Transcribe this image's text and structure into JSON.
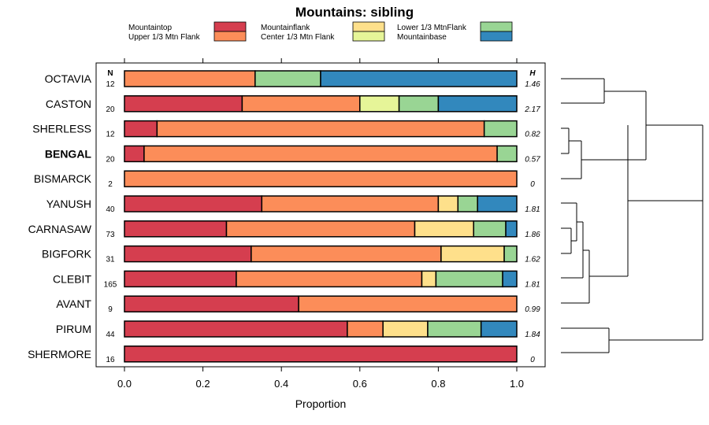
{
  "chart_data": {
    "type": "bar",
    "orientation": "horizontal",
    "stacked": true,
    "title": "Mountains: sibling",
    "xlabel": "Proportion",
    "xlim": [
      0,
      1
    ],
    "xticks": [
      0.0,
      0.2,
      0.4,
      0.6,
      0.8,
      1.0
    ],
    "xtick_labels": [
      "0.0",
      "0.2",
      "0.4",
      "0.6",
      "0.8",
      "1.0"
    ],
    "n_header": "N",
    "h_header": "H",
    "legend_position": "top",
    "series": [
      {
        "name": "Mountaintop",
        "color": "#d53e4f"
      },
      {
        "name": "Upper 1/3 Mtn Flank",
        "color": "#fc8d59"
      },
      {
        "name": "Mountainflank",
        "color": "#fee08b"
      },
      {
        "name": "Center 1/3 Mtn Flank",
        "color": "#e6f598"
      },
      {
        "name": "Lower 1/3 MtnFlank",
        "color": "#99d594"
      },
      {
        "name": "Mountainbase",
        "color": "#3288bd"
      }
    ],
    "rows": [
      {
        "label": "OCTAVIA",
        "n": "12",
        "h": "1.46",
        "bold": false,
        "values": [
          0,
          0.333,
          0,
          0,
          0.167,
          0.5
        ]
      },
      {
        "label": "CASTON",
        "n": "20",
        "h": "2.17",
        "bold": false,
        "values": [
          0.3,
          0.3,
          0,
          0.1,
          0.1,
          0.2
        ]
      },
      {
        "label": "SHERLESS",
        "n": "12",
        "h": "0.82",
        "bold": false,
        "values": [
          0.083,
          0.834,
          0,
          0,
          0.083,
          0
        ]
      },
      {
        "label": "BENGAL",
        "n": "20",
        "h": "0.57",
        "bold": true,
        "values": [
          0.05,
          0.9,
          0,
          0,
          0.05,
          0
        ]
      },
      {
        "label": "BISMARCK",
        "n": "2",
        "h": "0",
        "bold": false,
        "values": [
          0,
          1.0,
          0,
          0,
          0,
          0
        ]
      },
      {
        "label": "YANUSH",
        "n": "40",
        "h": "1.81",
        "bold": false,
        "values": [
          0.35,
          0.45,
          0.05,
          0,
          0.05,
          0.1
        ]
      },
      {
        "label": "CARNASAW",
        "n": "73",
        "h": "1.86",
        "bold": false,
        "values": [
          0.26,
          0.48,
          0.15,
          0,
          0.082,
          0.028
        ]
      },
      {
        "label": "BIGFORK",
        "n": "31",
        "h": "1.62",
        "bold": false,
        "values": [
          0.323,
          0.484,
          0.161,
          0,
          0.032,
          0
        ]
      },
      {
        "label": "CLEBIT",
        "n": "165",
        "h": "1.81",
        "bold": false,
        "values": [
          0.285,
          0.473,
          0.036,
          0,
          0.17,
          0.036
        ]
      },
      {
        "label": "AVANT",
        "n": "9",
        "h": "0.99",
        "bold": false,
        "values": [
          0.444,
          0.556,
          0,
          0,
          0,
          0
        ]
      },
      {
        "label": "PIRUM",
        "n": "44",
        "h": "1.84",
        "bold": false,
        "values": [
          0.568,
          0.091,
          0.114,
          0,
          0.136,
          0.091
        ]
      },
      {
        "label": "SHERMORE",
        "n": "16",
        "h": "0",
        "bold": false,
        "values": [
          1.0,
          0,
          0,
          0,
          0,
          0
        ]
      }
    ],
    "dendrogram": {
      "type": "hierarchical-clustering",
      "leaves": [
        "OCTAVIA",
        "CASTON",
        "SHERLESS",
        "BENGAL",
        "BISMARCK",
        "YANUSH",
        "CARNASAW",
        "BIGFORK",
        "CLEBIT",
        "AVANT",
        "PIRUM",
        "SHERMORE"
      ]
    }
  }
}
